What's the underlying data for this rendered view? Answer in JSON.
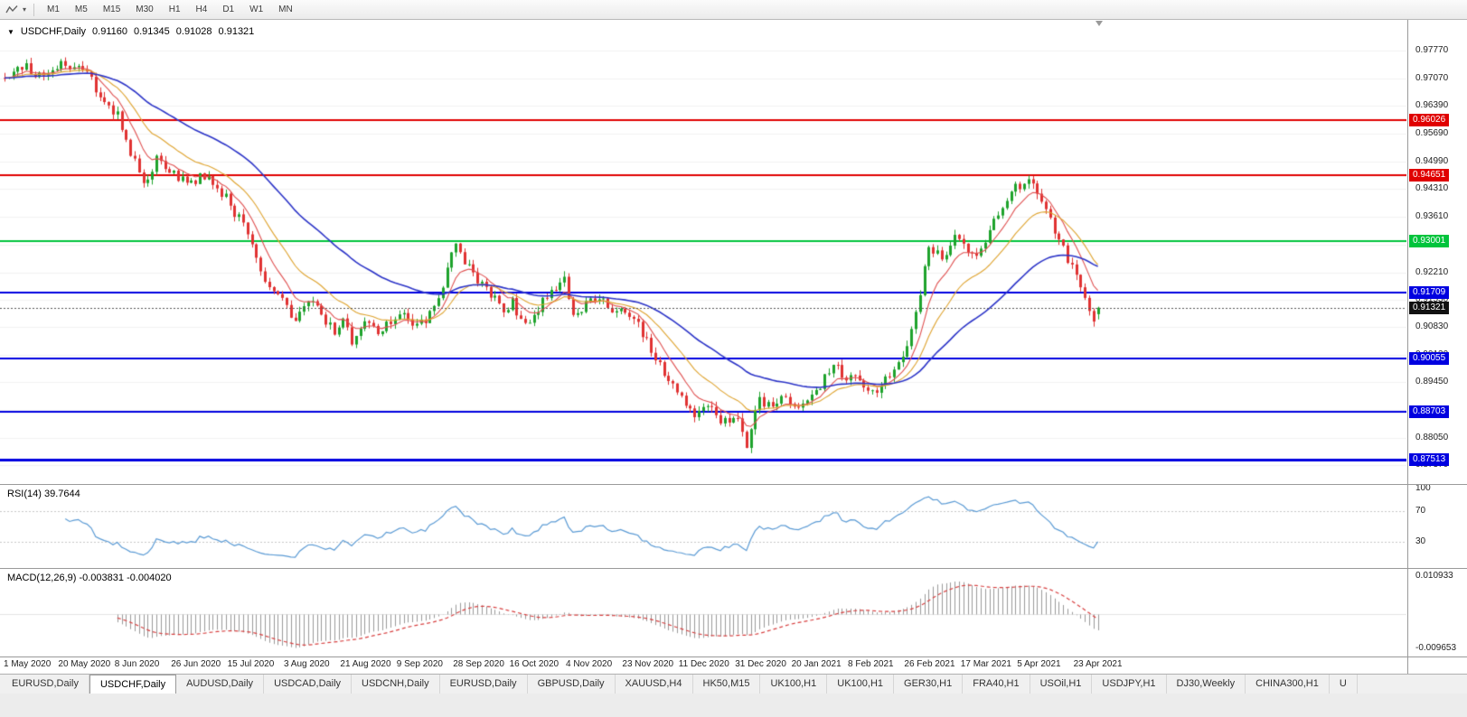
{
  "toolbar": {
    "timeframes": [
      "M1",
      "M5",
      "M15",
      "M30",
      "H1",
      "H4",
      "D1",
      "W1",
      "MN"
    ],
    "chart_tool_icon": "zigzag-line-icon",
    "dropdown_icon": "caret-down"
  },
  "chart": {
    "collapse_icon": "▼",
    "symbol": "USDCHF,Daily",
    "open": "0.91160",
    "high": "0.91345",
    "low": "0.91028",
    "close": "0.91321"
  },
  "price_axis": {
    "ticks": [
      "0.97770",
      "0.97070",
      "0.96390",
      "0.95690",
      "0.94990",
      "0.94310",
      "0.93610",
      "0.92910",
      "0.92210",
      "0.91530",
      "0.90830",
      "0.90130",
      "0.89450",
      "0.88750",
      "0.88050",
      "0.87370"
    ],
    "current_label": "0.91321"
  },
  "rsi": {
    "label": "RSI(14) 39.7644",
    "ticks": [
      "100",
      "70",
      "30"
    ]
  },
  "macd": {
    "label": "MACD(12,26,9) -0.003831 -0.004020",
    "ticks": [
      "0.010933",
      "-0.009653"
    ]
  },
  "dates": [
    "1 May 2020",
    "20 May 2020",
    "8 Jun 2020",
    "26 Jun 2020",
    "15 Jul 2020",
    "3 Aug 2020",
    "21 Aug 2020",
    "9 Sep 2020",
    "28 Sep 2020",
    "16 Oct 2020",
    "4 Nov 2020",
    "23 Nov 2020",
    "11 Dec 2020",
    "31 Dec 2020",
    "20 Jan 2021",
    "8 Feb 2021",
    "26 Feb 2021",
    "17 Mar 2021",
    "5 Apr 2021",
    "23 Apr 2021"
  ],
  "tabs": [
    {
      "label": "EURUSD,Daily",
      "active": false
    },
    {
      "label": "USDCHF,Daily",
      "active": true
    },
    {
      "label": "AUDUSD,Daily",
      "active": false
    },
    {
      "label": "USDCAD,Daily",
      "active": false
    },
    {
      "label": "USDCNH,Daily",
      "active": false
    },
    {
      "label": "EURUSD,Daily",
      "active": false
    },
    {
      "label": "GBPUSD,Daily",
      "active": false
    },
    {
      "label": "XAUUSD,H4",
      "active": false
    },
    {
      "label": "HK50,M15",
      "active": false
    },
    {
      "label": "UK100,H1",
      "active": false
    },
    {
      "label": "UK100,H1",
      "active": false
    },
    {
      "label": "GER30,H1",
      "active": false
    },
    {
      "label": "FRA40,H1",
      "active": false
    },
    {
      "label": "USOil,H1",
      "active": false
    },
    {
      "label": "USDJPY,H1",
      "active": false
    },
    {
      "label": "DJ30,Weekly",
      "active": false
    },
    {
      "label": "CHINA300,H1",
      "active": false
    },
    {
      "label": "U",
      "active": false
    }
  ],
  "colors": {
    "candle_up": "#1ea32c",
    "candle_down": "#e03232",
    "background": "#ffffff",
    "divider": "#9a9a9a",
    "current_price_badge": "#111111"
  },
  "chart_data": {
    "type": "candlestick",
    "symbol": "USDCHF",
    "timeframe": "Daily",
    "num_candles": 253,
    "last_candle": {
      "open": 0.9116,
      "high": 0.91345,
      "low": 0.91028,
      "close": 0.91321
    },
    "current_price": 0.91321,
    "price_range": {
      "top": 0.9854,
      "bottom": 0.869
    },
    "close_keypoints": [
      [
        0,
        0.9705
      ],
      [
        3,
        0.9745
      ],
      [
        8,
        0.9718
      ],
      [
        13,
        0.9738
      ],
      [
        17,
        0.9742
      ],
      [
        20,
        0.97
      ],
      [
        23,
        0.9645
      ],
      [
        26,
        0.9612
      ],
      [
        29,
        0.9525
      ],
      [
        32,
        0.9435
      ],
      [
        35,
        0.9502
      ],
      [
        39,
        0.9468
      ],
      [
        43,
        0.9448
      ],
      [
        47,
        0.9468
      ],
      [
        52,
        0.939
      ],
      [
        55,
        0.9338
      ],
      [
        58,
        0.9252
      ],
      [
        61,
        0.9185
      ],
      [
        65,
        0.9132
      ],
      [
        67,
        0.9095
      ],
      [
        70,
        0.9148
      ],
      [
        73,
        0.9118
      ],
      [
        76,
        0.9066
      ],
      [
        78,
        0.9096
      ],
      [
        80,
        0.9052
      ],
      [
        83,
        0.9104
      ],
      [
        86,
        0.9076
      ],
      [
        89,
        0.909
      ],
      [
        91,
        0.9124
      ],
      [
        94,
        0.9086
      ],
      [
        97,
        0.9102
      ],
      [
        100,
        0.916
      ],
      [
        104,
        0.9296
      ],
      [
        106,
        0.924
      ],
      [
        109,
        0.9206
      ],
      [
        112,
        0.9166
      ],
      [
        115,
        0.913
      ],
      [
        117,
        0.9146
      ],
      [
        120,
        0.9082
      ],
      [
        123,
        0.913
      ],
      [
        126,
        0.9176
      ],
      [
        129,
        0.9206
      ],
      [
        131,
        0.9108
      ],
      [
        134,
        0.9136
      ],
      [
        137,
        0.9156
      ],
      [
        140,
        0.9126
      ],
      [
        143,
        0.9116
      ],
      [
        146,
        0.9086
      ],
      [
        149,
        0.903
      ],
      [
        152,
        0.8962
      ],
      [
        156,
        0.8906
      ],
      [
        159,
        0.8866
      ],
      [
        162,
        0.8896
      ],
      [
        165,
        0.8842
      ],
      [
        169,
        0.8856
      ],
      [
        171,
        0.8792
      ],
      [
        174,
        0.89
      ],
      [
        177,
        0.8886
      ],
      [
        180,
        0.8906
      ],
      [
        182,
        0.8872
      ],
      [
        185,
        0.8896
      ],
      [
        188,
        0.8936
      ],
      [
        191,
        0.8996
      ],
      [
        194,
        0.8956
      ],
      [
        195,
        0.8976
      ],
      [
        198,
        0.8926
      ],
      [
        201,
        0.8926
      ],
      [
        204,
        0.8966
      ],
      [
        207,
        0.9012
      ],
      [
        208,
        0.9042
      ],
      [
        211,
        0.9162
      ],
      [
        213,
        0.9292
      ],
      [
        216,
        0.9252
      ],
      [
        219,
        0.9302
      ],
      [
        221,
        0.9282
      ],
      [
        224,
        0.9256
      ],
      [
        227,
        0.9322
      ],
      [
        230,
        0.9386
      ],
      [
        233,
        0.9432
      ],
      [
        234,
        0.9426
      ],
      [
        236,
        0.9446
      ],
      [
        239,
        0.9402
      ],
      [
        241,
        0.9352
      ],
      [
        243,
        0.9302
      ],
      [
        245,
        0.9256
      ],
      [
        247,
        0.9202
      ],
      [
        249,
        0.9156
      ],
      [
        251,
        0.9102
      ],
      [
        252,
        0.9132
      ]
    ],
    "moving_averages": [
      {
        "name": "ma-fast",
        "period": 8,
        "color": "#e05050",
        "width": 1.1
      },
      {
        "name": "ma-medium",
        "period": 18,
        "color": "#dfa430",
        "width": 1.1
      },
      {
        "name": "ma-slow",
        "period": 45,
        "color": "#2d35c8",
        "width": 1.6
      }
    ],
    "horizontal_lines": [
      {
        "name": "resistance-096026",
        "price": 0.96026,
        "label": "0.96026",
        "color": "#e00000",
        "width": 2
      },
      {
        "name": "resistance-094651",
        "price": 0.94651,
        "label": "0.94651",
        "color": "#e00000",
        "width": 2
      },
      {
        "name": "level-093001",
        "price": 0.93001,
        "label": "0.93001",
        "color": "#00c43c",
        "width": 2
      },
      {
        "name": "support-091709",
        "price": 0.91709,
        "label": "0.91709",
        "color": "#0000e0",
        "width": 2
      },
      {
        "name": "support-090055",
        "price": 0.90055,
        "label": "0.90055",
        "color": "#0000e0",
        "width": 2
      },
      {
        "name": "support-088703",
        "price": 0.88703,
        "label": "0.88703",
        "color": "#0000e0",
        "width": 2
      },
      {
        "name": "support-087513",
        "price": 0.87513,
        "label": "0.87513",
        "color": "#0000e0",
        "width": 3
      }
    ],
    "rsi": {
      "period": 14,
      "current": 39.7644,
      "color": "#5b9bd5",
      "levels": [
        70,
        30
      ]
    },
    "macd": {
      "fast": 12,
      "slow": 26,
      "signal": 9,
      "value": -0.003831,
      "signal_value": -0.00402,
      "histogram_color": "#9a9a9a",
      "signal_color": "#d84040",
      "range": {
        "max": 0.010933,
        "min": -0.009653
      }
    }
  }
}
